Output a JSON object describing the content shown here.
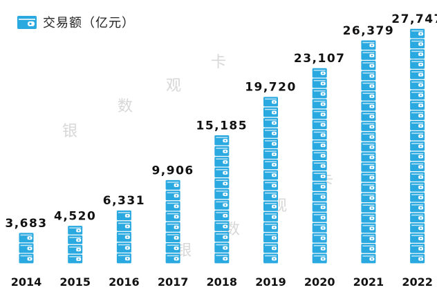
{
  "legend": {
    "label": "交易额（亿元）",
    "icon": "wallet-icon"
  },
  "watermarks": [
    "银",
    "数",
    "观",
    "卡",
    "银",
    "数",
    "观",
    "卡"
  ],
  "colors": {
    "wallet": "#2aa9e0",
    "wallet_border": "#ffffff",
    "value_text": "#111111",
    "axis_text": "#111111",
    "watermark": "#d7d7d7"
  },
  "chart_data": {
    "type": "bar",
    "mark": "stacked wallet icons",
    "categories": [
      "2014",
      "2015",
      "2016",
      "2017",
      "2018",
      "2019",
      "2020",
      "2021",
      "2022"
    ],
    "values": [
      3683,
      4520,
      6331,
      9906,
      15185,
      19720,
      23107,
      26379,
      27747
    ],
    "value_labels": [
      "3,683",
      "4,520",
      "6,331",
      "9,906",
      "15,185",
      "19,720",
      "23,107",
      "26,379",
      "27,747"
    ],
    "series": [
      {
        "name": "交易额（亿元）",
        "values": [
          3683,
          4520,
          6331,
          9906,
          15185,
          19720,
          23107,
          26379,
          27747
        ]
      }
    ],
    "ylim": [
      0,
      28000
    ],
    "grid": false,
    "legend_position": "top-left"
  }
}
